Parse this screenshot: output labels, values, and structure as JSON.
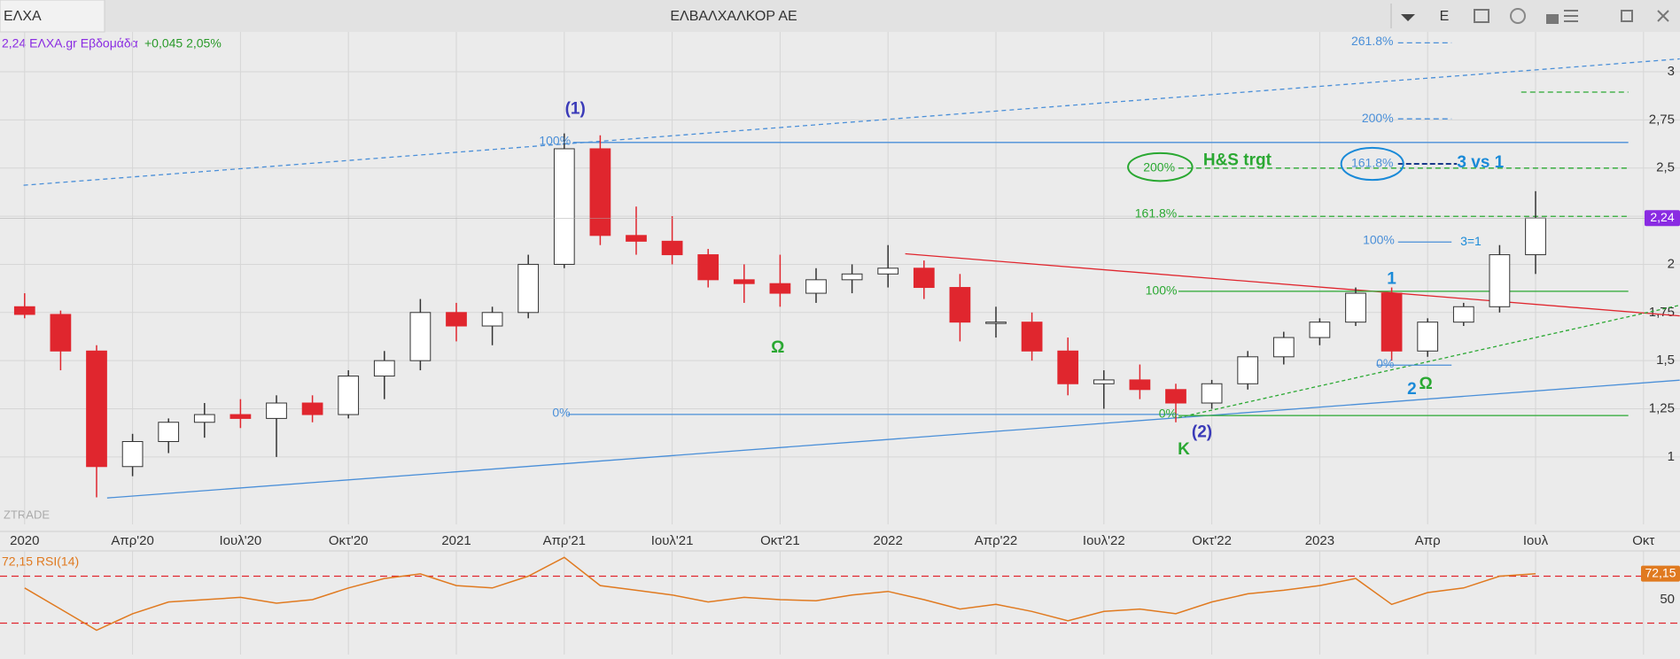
{
  "header": {
    "tab": "ΕΛΧΑ",
    "title": "ΕΛΒΑΛΧΑΛΚΟΡ ΑΕ",
    "button": "E"
  },
  "info": {
    "quote": "2,24 ΕΛΧΑ.gr Εβδομάδα",
    "change": "+0,045 2,05%"
  },
  "watermark": "ZTRADE",
  "chart_data": [
    {
      "type": "candlestick",
      "x": [
        "2020-01",
        "2020-02",
        "2020-03",
        "2020-04",
        "2020-05",
        "2020-06",
        "2020-07",
        "2020-08",
        "2020-09",
        "2020-10",
        "2020-11",
        "2020-12",
        "2021-01",
        "2021-02",
        "2021-03",
        "2021-04",
        "2021-05",
        "2021-06",
        "2021-07",
        "2021-08",
        "2021-09",
        "2021-10",
        "2021-11",
        "2021-12",
        "2022-01",
        "2022-02",
        "2022-03",
        "2022-04",
        "2022-05",
        "2022-06",
        "2022-07",
        "2022-08",
        "2022-09",
        "2022-10",
        "2022-11",
        "2022-12",
        "2023-01",
        "2023-02",
        "2023-03",
        "2023-04",
        "2023-05",
        "2023-06",
        "2023-07"
      ],
      "open": [
        1.78,
        1.74,
        1.55,
        0.95,
        1.08,
        1.18,
        1.22,
        1.2,
        1.28,
        1.22,
        1.42,
        1.5,
        1.75,
        1.68,
        1.75,
        2.0,
        2.6,
        2.15,
        2.12,
        2.05,
        1.92,
        1.9,
        1.85,
        1.92,
        1.95,
        1.98,
        1.88,
        1.7,
        1.7,
        1.55,
        1.38,
        1.4,
        1.35,
        1.28,
        1.38,
        1.52,
        1.62,
        1.7,
        1.85,
        1.55,
        1.7,
        1.78,
        2.05
      ],
      "high": [
        1.85,
        1.76,
        1.58,
        1.12,
        1.2,
        1.28,
        1.3,
        1.32,
        1.32,
        1.45,
        1.55,
        1.82,
        1.8,
        1.78,
        2.05,
        2.68,
        2.67,
        2.3,
        2.25,
        2.08,
        2.0,
        2.05,
        1.98,
        2.0,
        2.1,
        2.02,
        1.95,
        1.78,
        1.75,
        1.62,
        1.45,
        1.48,
        1.38,
        1.4,
        1.55,
        1.65,
        1.72,
        1.88,
        1.88,
        1.72,
        1.8,
        2.1,
        2.38
      ],
      "low": [
        1.72,
        1.45,
        0.79,
        0.9,
        1.02,
        1.1,
        1.15,
        1.0,
        1.18,
        1.2,
        1.3,
        1.45,
        1.6,
        1.58,
        1.72,
        1.98,
        2.1,
        2.05,
        2.0,
        1.88,
        1.8,
        1.78,
        1.8,
        1.85,
        1.88,
        1.82,
        1.6,
        1.62,
        1.5,
        1.32,
        1.25,
        1.3,
        1.18,
        1.25,
        1.35,
        1.48,
        1.58,
        1.68,
        1.5,
        1.52,
        1.68,
        1.75,
        1.95
      ],
      "close": [
        1.74,
        1.55,
        0.95,
        1.08,
        1.18,
        1.22,
        1.2,
        1.28,
        1.22,
        1.42,
        1.5,
        1.75,
        1.68,
        1.75,
        2.0,
        2.6,
        2.15,
        2.12,
        2.05,
        1.92,
        1.9,
        1.85,
        1.92,
        1.95,
        1.98,
        1.88,
        1.7,
        1.7,
        1.55,
        1.38,
        1.4,
        1.35,
        1.28,
        1.38,
        1.52,
        1.62,
        1.7,
        1.85,
        1.55,
        1.7,
        1.78,
        2.05,
        2.24
      ],
      "up_color": "#ffffff",
      "down_color": "#e0262e",
      "last_label": "2,24",
      "xlim": [
        "2019-12",
        "2023-11"
      ],
      "xticks": [
        {
          "value": "2020-01",
          "label": "2020"
        },
        {
          "value": "2020-04",
          "label": "Απρ'20"
        },
        {
          "value": "2020-07",
          "label": "Ιουλ'20"
        },
        {
          "value": "2020-10",
          "label": "Οκτ'20"
        },
        {
          "value": "2021-01",
          "label": "2021"
        },
        {
          "value": "2021-04",
          "label": "Απρ'21"
        },
        {
          "value": "2021-07",
          "label": "Ιουλ'21"
        },
        {
          "value": "2021-10",
          "label": "Οκτ'21"
        },
        {
          "value": "2022-01",
          "label": "2022"
        },
        {
          "value": "2022-04",
          "label": "Απρ'22"
        },
        {
          "value": "2022-07",
          "label": "Ιουλ'22"
        },
        {
          "value": "2022-10",
          "label": "Οκτ'22"
        },
        {
          "value": "2023-01",
          "label": "2023"
        },
        {
          "value": "2023-04",
          "label": "Απρ"
        },
        {
          "value": "2023-07",
          "label": "Ιουλ"
        },
        {
          "value": "2023-10",
          "label": "Οκτ"
        }
      ],
      "ylim": [
        0.65,
        3.2
      ],
      "yticks": [
        1,
        {
          "value": 1.25,
          "label": "1,25"
        },
        {
          "value": 1.5,
          "label": "1,5"
        },
        {
          "value": 1.75,
          "label": "1,75"
        },
        2,
        {
          "value": 2.25,
          "label": "2,25"
        },
        {
          "value": 2.5,
          "label": "2,5"
        },
        {
          "value": 2.75,
          "label": "2,75"
        },
        3
      ],
      "grid": true,
      "annotations": [
        {
          "text": "(1)",
          "color": "#3a3ab8"
        },
        {
          "text": "100%",
          "color": "#4a8fd8"
        },
        {
          "text": "0%",
          "color": "#4a8fd8"
        },
        {
          "text": "Ω",
          "color": "#2aa832"
        },
        {
          "text": "(2)",
          "color": "#3a3ab8"
        },
        {
          "text": "K",
          "color": "#2aa832"
        },
        {
          "text": "0%",
          "color": "#2aa832"
        },
        {
          "text": "100%",
          "color": "#2aa832"
        },
        {
          "text": "161.8%",
          "color": "#2aa832"
        },
        {
          "text": "200%",
          "color": "#2aa832"
        },
        {
          "text": "H&S trgt",
          "color": "#2aa832"
        },
        {
          "text": "261.8%",
          "color": "#4a8fd8"
        },
        {
          "text": "200%",
          "color": "#4a8fd8"
        },
        {
          "text": "161.8%",
          "color": "#4a8fd8"
        },
        {
          "text": "3 vs 1",
          "color": "#1a8ad8"
        },
        {
          "text": "100%",
          "color": "#4a8fd8"
        },
        {
          "text": "3=1",
          "color": "#1a8ad8"
        },
        {
          "text": "1",
          "color": "#1a8ad8"
        },
        {
          "text": "0%",
          "color": "#4a8fd8"
        },
        {
          "text": "2",
          "color": "#1a8ad8"
        },
        {
          "text": "Ω",
          "color": "#2aa832"
        }
      ]
    },
    {
      "type": "line",
      "title": "72,15 RSI(14)",
      "color": "#e07a20",
      "last_label": "72,15",
      "values": [
        60,
        42,
        24,
        38,
        48,
        50,
        52,
        47,
        50,
        60,
        68,
        72,
        62,
        60,
        70,
        86,
        62,
        58,
        54,
        48,
        52,
        50,
        49,
        54,
        57,
        50,
        42,
        46,
        40,
        32,
        40,
        42,
        38,
        48,
        55,
        58,
        62,
        68,
        46,
        56,
        60,
        70,
        72.15
      ],
      "ylim": [
        10,
        90
      ],
      "yticks": [
        50
      ],
      "levels": [
        70,
        30
      ]
    }
  ]
}
